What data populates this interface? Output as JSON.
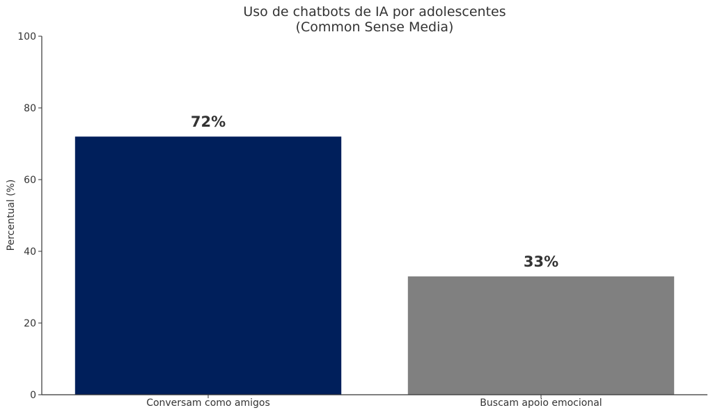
{
  "chart_data": {
    "type": "bar",
    "title": "Uso de chatbots de IA por adolescentes",
    "subtitle": "(Common Sense Media)",
    "xlabel": "",
    "ylabel": "Percentual (%)",
    "ylim": [
      0,
      100
    ],
    "yticks": [
      0,
      20,
      40,
      60,
      80,
      100
    ],
    "categories": [
      "Conversam como amigos",
      "Buscam apoio emocional"
    ],
    "values": [
      72,
      33
    ],
    "data_labels": [
      "72%",
      "33%"
    ],
    "bar_colors": [
      "#001f5b",
      "#808080"
    ],
    "grid": false,
    "legend": "none"
  }
}
